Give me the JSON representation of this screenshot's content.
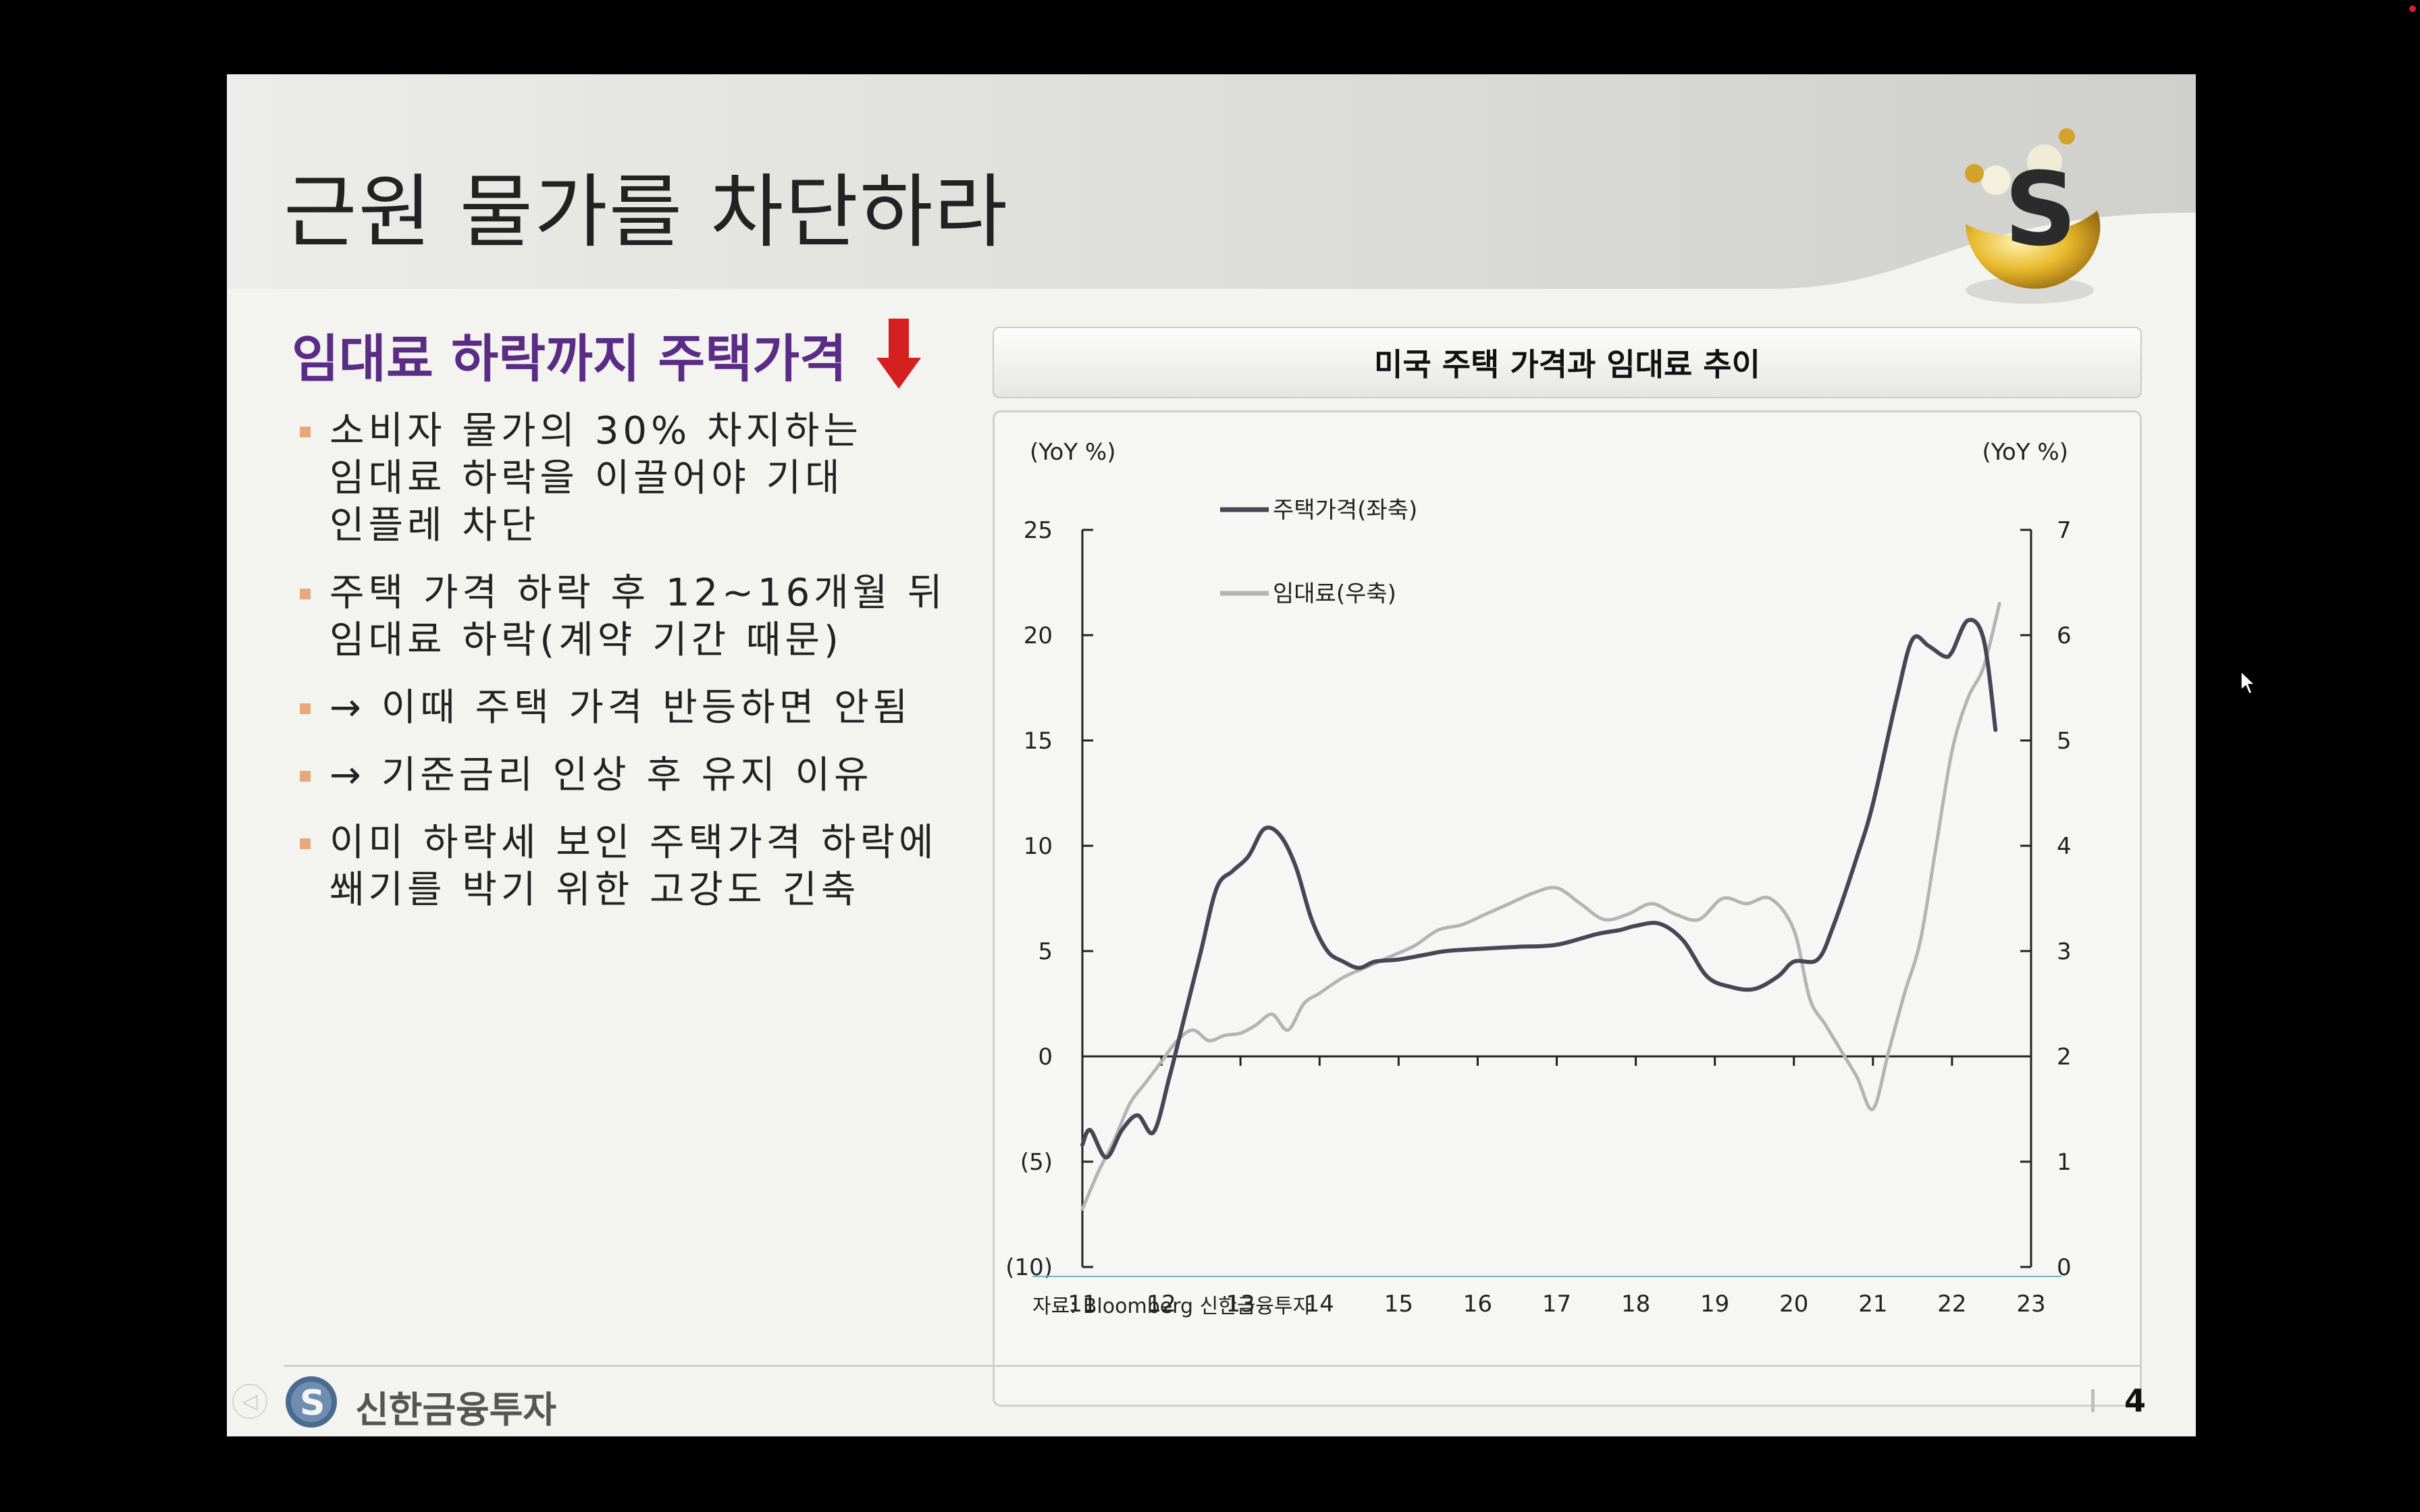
{
  "slide": {
    "title": "근원 물가를 차단하라",
    "left_heading": "임대료 하락까지 주택가격",
    "bullets": [
      "소비자 물가의 30% 차지하는\n임대료 하락을 이끌어야 기대\n인플레 차단",
      "주택 가격 하락 후 12~16개월 뒤\n임대료 하락(계약 기간 때문)",
      "→ 이때 주택 가격 반등하면 안됨",
      "→ 기준금리 인상 후 유지 이유",
      "이미 하락세 보인 주택가격 하락에\n쐐기를 박기 위한 고강도 긴축"
    ],
    "page_number": "4",
    "footer_brand": "신한금융투자"
  },
  "colors": {
    "heading": "#5b2c86",
    "arrow": "#d62020",
    "bullet_marker": "#e8a87c",
    "series_housing": "#464656",
    "series_rent": "#b4b4b4",
    "source_rule": "#6fb3c2"
  },
  "icons": [
    "shinhan-logo-icon",
    "down-arrow-icon",
    "prev-slide-icon",
    "next-slide-icon",
    "mouse-cursor-icon"
  ],
  "chart_data": {
    "type": "line",
    "title": "미국 주택 가격과 임대료 추이",
    "left_axis_unit": "(YoY %)",
    "right_axis_unit": "(YoY %)",
    "source": "자료: Bloomberg 신한금융투자",
    "x_tick_labels": [
      "11",
      "12",
      "13",
      "14",
      "15",
      "16",
      "17",
      "18",
      "19",
      "20",
      "21",
      "22",
      "23"
    ],
    "x_range": [
      11,
      23
    ],
    "left_ylim": [
      -10,
      25
    ],
    "right_ylim": [
      0,
      7
    ],
    "left_tick_labels": [
      "25",
      "20",
      "15",
      "10",
      "5",
      "0",
      "(5)",
      "(10)"
    ],
    "right_tick_labels": [
      "7",
      "6",
      "5",
      "4",
      "3",
      "2",
      "1",
      "0"
    ],
    "grid": false,
    "legend_position": "top-left",
    "series": [
      {
        "name": "주택가격(좌축)",
        "axis": "left",
        "x": [
          11.0,
          11.1,
          11.3,
          11.5,
          11.7,
          11.9,
          12.1,
          12.3,
          12.5,
          12.7,
          12.9,
          13.1,
          13.3,
          13.5,
          13.7,
          13.9,
          14.1,
          14.3,
          14.5,
          14.7,
          15.0,
          15.3,
          15.6,
          16.0,
          16.5,
          17.0,
          17.5,
          17.8,
          18.0,
          18.3,
          18.6,
          18.9,
          19.2,
          19.5,
          19.8,
          20.0,
          20.3,
          20.5,
          20.8,
          21.0,
          21.3,
          21.5,
          21.7,
          21.9,
          22.0,
          22.2,
          22.4,
          22.55
        ],
        "y": [
          -4.2,
          -3.5,
          -4.8,
          -3.5,
          -2.8,
          -3.6,
          -1.0,
          2.0,
          5.0,
          8.0,
          8.8,
          9.5,
          10.8,
          10.5,
          9.0,
          6.5,
          5.0,
          4.5,
          4.2,
          4.5,
          4.6,
          4.8,
          5.0,
          5.1,
          5.2,
          5.3,
          5.8,
          6.0,
          6.2,
          6.3,
          5.5,
          3.8,
          3.3,
          3.2,
          3.8,
          4.5,
          4.6,
          6.2,
          9.5,
          12.0,
          17.0,
          19.8,
          19.5,
          19.0,
          19.2,
          20.7,
          19.8,
          15.5
        ]
      },
      {
        "name": "임대료(우축)",
        "axis": "right",
        "x": [
          11.0,
          11.2,
          11.4,
          11.6,
          11.8,
          12.0,
          12.2,
          12.4,
          12.6,
          12.8,
          13.0,
          13.2,
          13.4,
          13.6,
          13.8,
          14.0,
          14.3,
          14.6,
          14.9,
          15.2,
          15.5,
          15.8,
          16.1,
          16.4,
          16.7,
          17.0,
          17.3,
          17.6,
          17.9,
          18.2,
          18.5,
          18.8,
          19.1,
          19.4,
          19.7,
          20.0,
          20.2,
          20.4,
          20.6,
          20.8,
          21.0,
          21.2,
          21.4,
          21.6,
          21.8,
          22.0,
          22.2,
          22.4,
          22.6
        ],
        "y": [
          0.55,
          0.9,
          1.2,
          1.55,
          1.75,
          1.95,
          2.15,
          2.25,
          2.15,
          2.2,
          2.22,
          2.3,
          2.4,
          2.25,
          2.5,
          2.6,
          2.75,
          2.85,
          2.95,
          3.05,
          3.2,
          3.25,
          3.35,
          3.45,
          3.55,
          3.6,
          3.45,
          3.3,
          3.35,
          3.45,
          3.35,
          3.3,
          3.5,
          3.45,
          3.5,
          3.2,
          2.55,
          2.3,
          2.05,
          1.8,
          1.5,
          2.05,
          2.6,
          3.1,
          4.0,
          4.9,
          5.4,
          5.7,
          6.3
        ]
      }
    ]
  }
}
